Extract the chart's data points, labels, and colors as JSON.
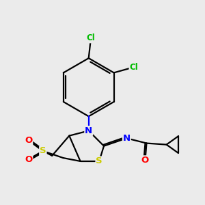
{
  "bg_color": "#ebebeb",
  "atom_colors": {
    "C": "#000000",
    "N": "#0000ff",
    "O": "#ff0000",
    "S": "#cccc00",
    "Cl": "#00bb00",
    "H": "#000000"
  },
  "bond_color": "#000000",
  "figsize": [
    3.0,
    3.0
  ],
  "dpi": 100
}
